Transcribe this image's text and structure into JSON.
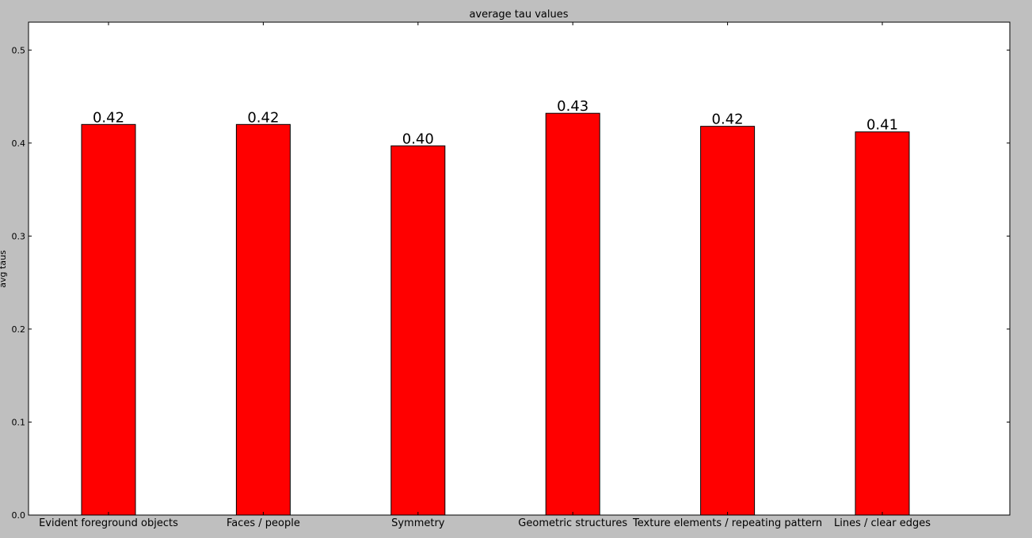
{
  "chart_data": {
    "type": "bar",
    "title": "average tau values",
    "xlabel": "",
    "ylabel": "avg taus",
    "categories": [
      "Evident foreground objects",
      "Faces / people",
      "Symmetry",
      "Geometric structures",
      "Texture elements / repeating pattern",
      "Lines / clear edges"
    ],
    "values": [
      0.42,
      0.42,
      0.397,
      0.432,
      0.418,
      0.412
    ],
    "data_labels": [
      "0.42",
      "0.42",
      "0.40",
      "0.43",
      "0.42",
      "0.41"
    ],
    "ylim": [
      0.0,
      0.53
    ],
    "yticks": [
      0.0,
      0.1,
      0.2,
      0.3,
      0.4,
      0.5
    ],
    "ytick_labels": [
      "0.0",
      "0.1",
      "0.2",
      "0.3",
      "0.4",
      "0.5"
    ],
    "grid": false,
    "legend": "none"
  },
  "colors": {
    "bar": "#ff0000",
    "bar_edge": "#000000",
    "plot_background": "#ffffff",
    "figure_background": "#bfbfbf"
  }
}
